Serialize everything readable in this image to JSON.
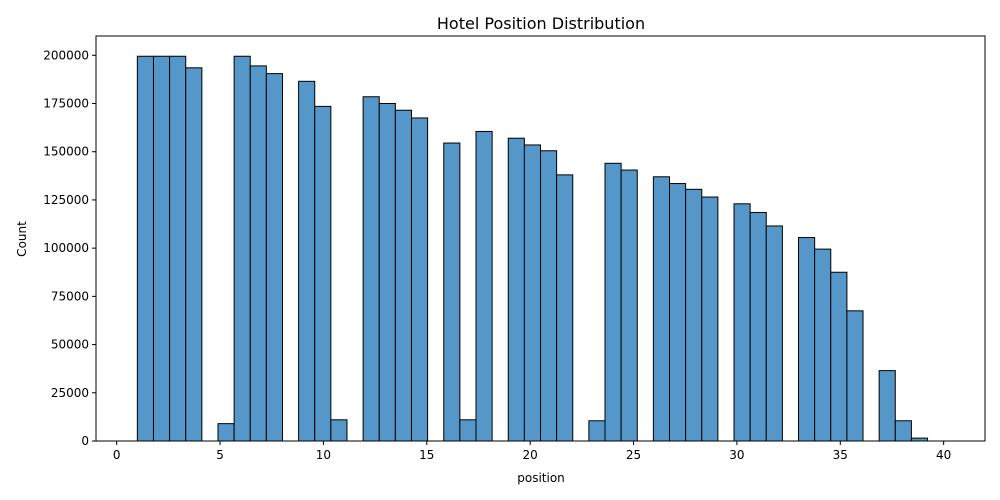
{
  "chart_data": {
    "type": "bar",
    "title": "Hotel Position Distribution",
    "xlabel": "position",
    "ylabel": "Count",
    "xlim": [
      -1,
      42
    ],
    "ylim": [
      0,
      210000
    ],
    "x_ticks": [
      0,
      5,
      10,
      15,
      20,
      25,
      30,
      35,
      40
    ],
    "y_ticks": [
      0,
      25000,
      50000,
      75000,
      100000,
      125000,
      150000,
      175000,
      200000
    ],
    "grid": false,
    "bin_width": 0.78,
    "bar_color": "#5597c8",
    "edge_color": "#000000",
    "bins": [
      {
        "x": 1.0,
        "count": 199500
      },
      {
        "x": 1.78,
        "count": 199500
      },
      {
        "x": 2.56,
        "count": 199500
      },
      {
        "x": 3.34,
        "count": 193500
      },
      {
        "x": 4.9,
        "count": 9000
      },
      {
        "x": 5.68,
        "count": 199500
      },
      {
        "x": 6.46,
        "count": 194500
      },
      {
        "x": 7.24,
        "count": 190500
      },
      {
        "x": 8.8,
        "count": 186500
      },
      {
        "x": 9.58,
        "count": 173500
      },
      {
        "x": 10.36,
        "count": 11000
      },
      {
        "x": 11.92,
        "count": 178500
      },
      {
        "x": 12.7,
        "count": 175000
      },
      {
        "x": 13.48,
        "count": 171500
      },
      {
        "x": 14.26,
        "count": 167500
      },
      {
        "x": 15.82,
        "count": 154500
      },
      {
        "x": 16.6,
        "count": 11000
      },
      {
        "x": 17.38,
        "count": 160500
      },
      {
        "x": 18.94,
        "count": 157000
      },
      {
        "x": 19.72,
        "count": 153500
      },
      {
        "x": 20.5,
        "count": 150500
      },
      {
        "x": 21.28,
        "count": 138000
      },
      {
        "x": 22.84,
        "count": 10500
      },
      {
        "x": 23.62,
        "count": 144000
      },
      {
        "x": 24.4,
        "count": 140500
      },
      {
        "x": 25.96,
        "count": 137000
      },
      {
        "x": 26.74,
        "count": 133500
      },
      {
        "x": 27.52,
        "count": 130500
      },
      {
        "x": 28.3,
        "count": 126500
      },
      {
        "x": 29.86,
        "count": 123000
      },
      {
        "x": 30.64,
        "count": 118500
      },
      {
        "x": 31.42,
        "count": 111500
      },
      {
        "x": 32.98,
        "count": 105500
      },
      {
        "x": 33.76,
        "count": 99500
      },
      {
        "x": 34.54,
        "count": 87500
      },
      {
        "x": 35.32,
        "count": 67500
      },
      {
        "x": 36.88,
        "count": 36500
      },
      {
        "x": 37.66,
        "count": 10500
      },
      {
        "x": 38.44,
        "count": 1500
      }
    ]
  }
}
